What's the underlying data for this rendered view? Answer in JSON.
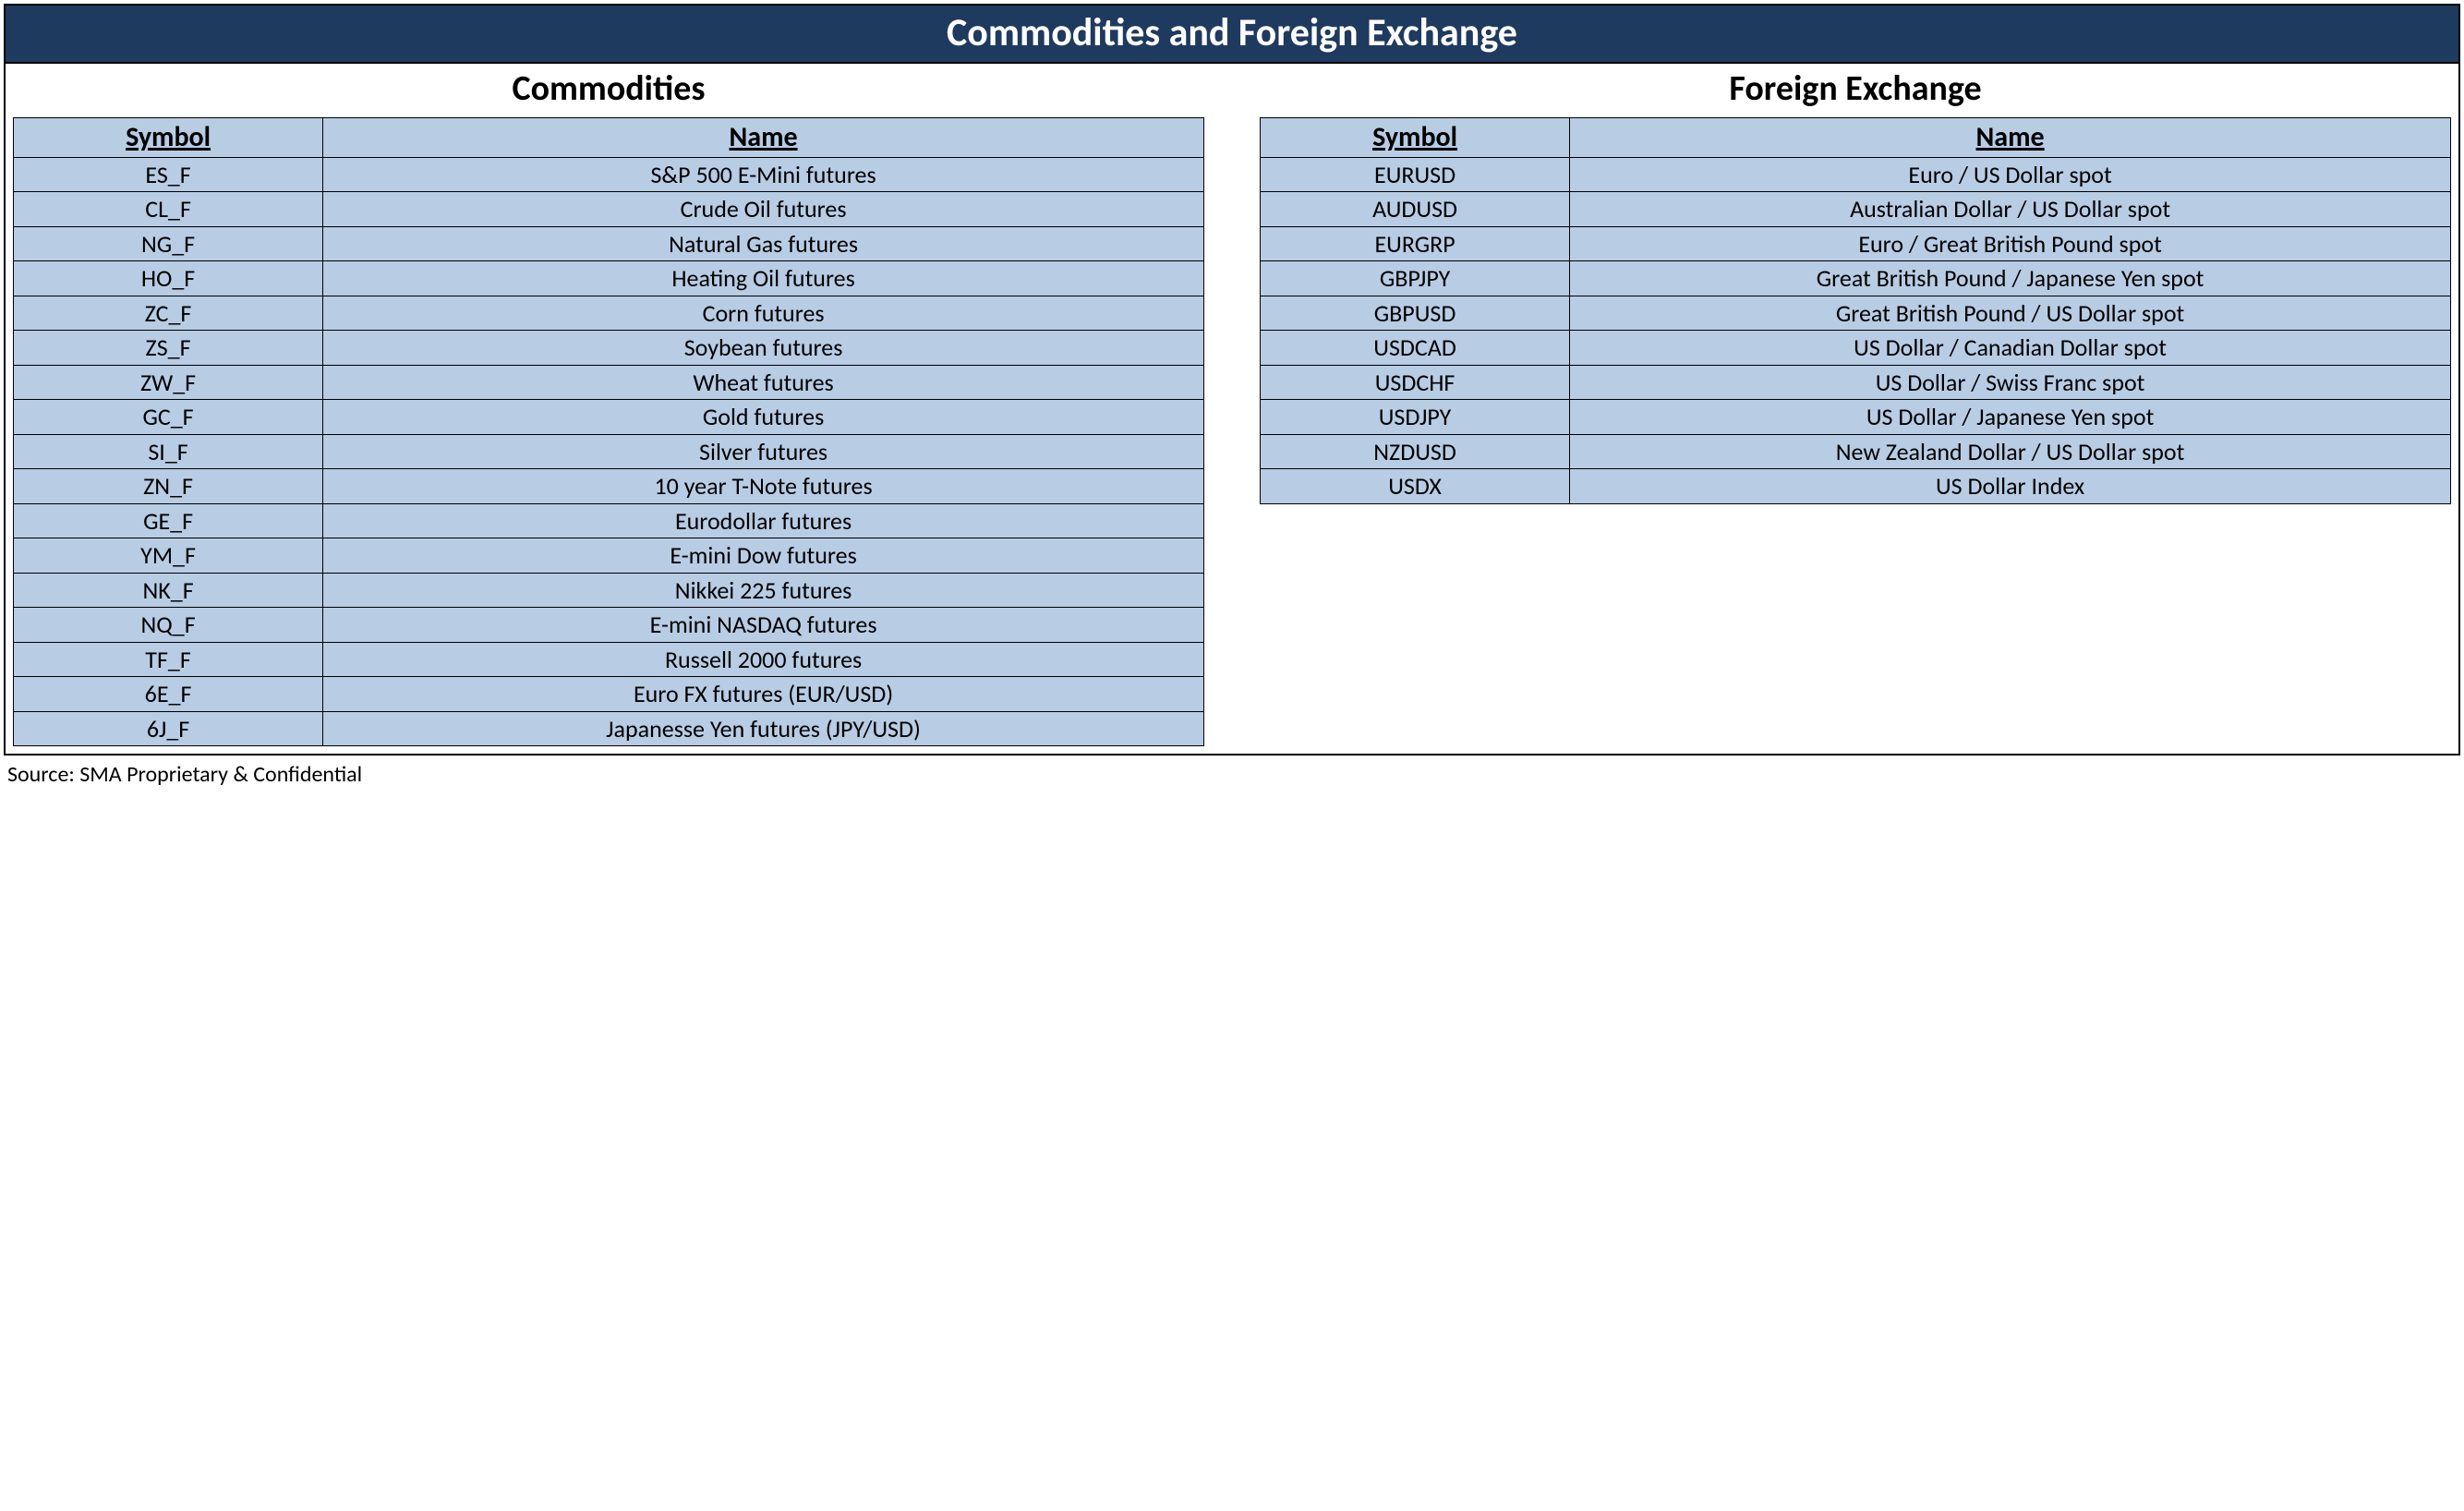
{
  "title": "Commodities and Foreign Exchange",
  "source": "Source: SMA Proprietary & Confidential",
  "colors": {
    "header_bg": "#1f3a5f",
    "header_text": "#ffffff",
    "cell_bg": "#b8cce4",
    "border": "#000000",
    "page_bg": "#ffffff"
  },
  "typography": {
    "title_fontsize_pt": 32,
    "panel_title_fontsize_pt": 28,
    "header_fontsize_pt": 22,
    "cell_fontsize_pt": 20,
    "source_fontsize_pt": 18,
    "font_family": "Calibri"
  },
  "tables": {
    "commodities": {
      "title": "Commodities",
      "columns": [
        "Symbol",
        "Name"
      ],
      "col_widths_pct": [
        26,
        74
      ],
      "rows": [
        [
          "ES_F",
          "S&P 500 E-Mini futures"
        ],
        [
          "CL_F",
          "Crude Oil futures"
        ],
        [
          "NG_F",
          "Natural Gas futures"
        ],
        [
          "HO_F",
          "Heating Oil futures"
        ],
        [
          "ZC_F",
          "Corn futures"
        ],
        [
          "ZS_F",
          "Soybean futures"
        ],
        [
          "ZW_F",
          "Wheat futures"
        ],
        [
          "GC_F",
          "Gold futures"
        ],
        [
          "SI_F",
          "Silver futures"
        ],
        [
          "ZN_F",
          "10 year T-Note futures"
        ],
        [
          "GE_F",
          "Eurodollar futures"
        ],
        [
          "YM_F",
          "E-mini Dow futures"
        ],
        [
          "NK_F",
          "Nikkei 225 futures"
        ],
        [
          "NQ_F",
          "E-mini NASDAQ futures"
        ],
        [
          "TF_F",
          "Russell 2000 futures"
        ],
        [
          "6E_F",
          "Euro FX futures (EUR/USD)"
        ],
        [
          "6J_F",
          "Japanesse Yen futures (JPY/USD)"
        ]
      ]
    },
    "fx": {
      "title": "Foreign Exchange",
      "columns": [
        "Symbol",
        "Name"
      ],
      "col_widths_pct": [
        26,
        74
      ],
      "rows": [
        [
          "EURUSD",
          "Euro / US Dollar spot"
        ],
        [
          "AUDUSD",
          "Australian Dollar / US Dollar spot"
        ],
        [
          "EURGRP",
          "Euro / Great British Pound spot"
        ],
        [
          "GBPJPY",
          "Great British Pound / Japanese Yen spot"
        ],
        [
          "GBPUSD",
          "Great British Pound / US Dollar spot"
        ],
        [
          "USDCAD",
          "US Dollar / Canadian Dollar spot"
        ],
        [
          "USDCHF",
          "US Dollar / Swiss Franc spot"
        ],
        [
          "USDJPY",
          "US Dollar / Japanese Yen spot"
        ],
        [
          "NZDUSD",
          "New Zealand Dollar / US Dollar spot"
        ],
        [
          "USDX",
          "US Dollar Index"
        ]
      ]
    }
  }
}
